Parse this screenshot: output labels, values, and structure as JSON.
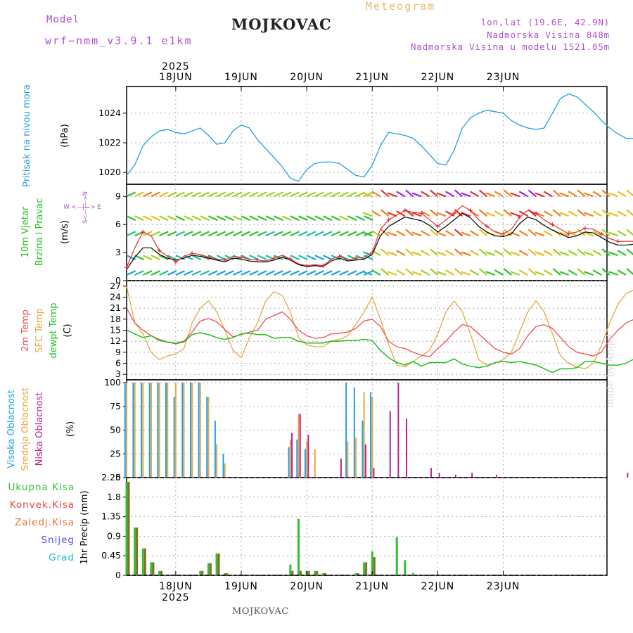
{
  "header": {
    "model_label": "Model",
    "model_name": "wrf−nmm_v3.9.1  e1km",
    "station": "MOJKOVAC",
    "meteogram_title": "Meteogram",
    "lonlat": "lon,lat (19.6E, 42.9N)",
    "elevation": "Nadmorska Visina 848m",
    "model_elevation": "Nadmorska Visina u modelu 1521.05m"
  },
  "footer": {
    "station": "MOJKOVAC",
    "made_by": "made by Angel"
  },
  "colors": {
    "pressure": "#20a0e0",
    "wind_speed": "#e03030",
    "wind_gust": "#000000",
    "t2m": "#ee5050",
    "tsfc": "#e8a840",
    "tdew": "#20c020",
    "cloud_high": "#20a0e0",
    "cloud_mid": "#e8a840",
    "cloud_low": "#c0208a",
    "precip_total": "#30c030",
    "precip_conv": "#ee4444",
    "precip_frz": "#f07030",
    "precip_snow": "#5050ee",
    "precip_graupel": "#20c0c0"
  },
  "chart_data": [
    {
      "type": "line",
      "panel": "pressure",
      "ylabel": "Pritisak na nivou mora",
      "unit": "(hPa)",
      "ylim": [
        1019.2,
        1025.8
      ],
      "yticks": [
        1020,
        1022,
        1024
      ],
      "x": [
        0,
        3,
        6,
        9,
        12,
        15,
        18,
        21,
        24,
        27,
        30,
        33,
        36,
        39,
        42,
        45,
        48,
        51,
        54,
        57,
        60,
        63,
        66,
        69,
        72,
        75,
        78,
        81,
        84,
        87,
        90,
        93,
        96,
        99,
        102,
        105,
        108,
        111,
        114,
        117,
        120,
        123,
        126,
        129,
        132,
        135,
        138,
        141,
        144,
        147,
        150,
        153,
        156,
        159,
        162,
        165,
        168,
        171,
        174,
        177,
        180,
        183,
        186,
        189,
        192
      ],
      "series": [
        {
          "name": "Pritisak na nivou mora",
          "values": [
            1019.8,
            1020.5,
            1021.8,
            1022.4,
            1022.8,
            1022.9,
            1022.7,
            1022.6,
            1022.8,
            1023.0,
            1022.5,
            1021.9,
            1022.0,
            1022.8,
            1023.2,
            1023.0,
            1022.2,
            1021.6,
            1021.0,
            1020.4,
            1019.6,
            1019.4,
            1020.2,
            1020.6,
            1020.7,
            1020.7,
            1020.6,
            1020.2,
            1019.8,
            1019.7,
            1020.5,
            1021.8,
            1022.7,
            1022.6,
            1022.5,
            1022.3,
            1021.8,
            1021.2,
            1020.6,
            1020.5,
            1021.5,
            1023.0,
            1023.7,
            1024.0,
            1024.2,
            1024.1,
            1024.0,
            1023.5,
            1023.2,
            1023.0,
            1022.9,
            1023.0,
            1024.0,
            1025.0,
            1025.3,
            1025.1,
            1024.6,
            1024.1,
            1023.5,
            1023.0,
            1022.6,
            1022.3,
            1022.3,
            1022.3,
            1022.3
          ]
        }
      ]
    },
    {
      "type": "line",
      "panel": "wind",
      "ylabel": "10m Vjetar Brzina i Pravac",
      "unit": "(m/s)",
      "compass": "W  <—|—>  E",
      "compass_ns": "S<—|—>N",
      "ylim": [
        0,
        10.3
      ],
      "yticks": [
        0,
        3,
        6,
        9
      ],
      "x": [
        0,
        3,
        6,
        9,
        12,
        15,
        18,
        21,
        24,
        27,
        30,
        33,
        36,
        39,
        42,
        45,
        48,
        51,
        54,
        57,
        60,
        63,
        66,
        69,
        72,
        75,
        78,
        81,
        84,
        87,
        90,
        93,
        96,
        99,
        102,
        105,
        108,
        111,
        114,
        117,
        120,
        123,
        126,
        129,
        132,
        135,
        138,
        141,
        144,
        147,
        150,
        153,
        156,
        159,
        162,
        165,
        168,
        171,
        174,
        177,
        180,
        183,
        186,
        189,
        192
      ],
      "series": [
        {
          "name": "10m wind speed",
          "values": [
            1.4,
            3.5,
            5.2,
            4.8,
            3.2,
            2.6,
            2.0,
            2.6,
            2.9,
            2.8,
            2.5,
            2.3,
            2.2,
            2.6,
            2.5,
            2.3,
            2.2,
            2.1,
            2.4,
            2.7,
            2.3,
            1.8,
            1.6,
            1.7,
            1.6,
            2.3,
            2.6,
            2.2,
            2.4,
            2.5,
            3.0,
            5.5,
            6.5,
            7.0,
            7.5,
            7.3,
            7.2,
            6.5,
            5.8,
            6.5,
            7.2,
            8.0,
            7.5,
            6.5,
            5.8,
            5.2,
            5.0,
            5.5,
            6.8,
            7.5,
            7.2,
            6.5,
            6.0,
            5.5,
            5.0,
            5.2,
            5.6,
            5.5,
            5.0,
            4.5,
            4.2,
            4.2,
            4.2,
            5.0,
            5.6
          ]
        },
        {
          "name": "gust",
          "values": [
            1.2,
            2.5,
            3.5,
            3.5,
            2.8,
            2.4,
            2.2,
            2.4,
            2.7,
            2.6,
            2.4,
            2.2,
            2.0,
            2.4,
            2.3,
            2.1,
            2.0,
            2.0,
            2.2,
            2.5,
            2.2,
            1.7,
            1.5,
            1.6,
            1.5,
            2.1,
            2.4,
            2.1,
            2.2,
            2.3,
            2.8,
            4.8,
            5.8,
            6.3,
            6.8,
            6.6,
            6.4,
            5.9,
            5.2,
            5.8,
            6.5,
            7.2,
            6.7,
            5.8,
            5.2,
            4.8,
            4.7,
            5.0,
            6.1,
            6.8,
            6.5,
            5.9,
            5.4,
            5.0,
            4.6,
            4.8,
            5.2,
            5.1,
            4.6,
            4.1,
            3.8,
            3.8,
            3.9,
            4.6,
            5.1
          ]
        }
      ]
    },
    {
      "type": "line",
      "panel": "temperature",
      "ylabels": [
        "2m Temp",
        "SFC Temp",
        "dewpt Temp"
      ],
      "unit": "(C)",
      "ylim": [
        1.5,
        28.5
      ],
      "yticks": [
        3,
        6,
        9,
        12,
        15,
        18,
        21,
        24,
        27
      ],
      "x": [
        0,
        3,
        6,
        9,
        12,
        15,
        18,
        21,
        24,
        27,
        30,
        33,
        36,
        39,
        42,
        45,
        48,
        51,
        54,
        57,
        60,
        63,
        66,
        69,
        72,
        75,
        78,
        81,
        84,
        87,
        90,
        93,
        96,
        99,
        102,
        105,
        108,
        111,
        114,
        117,
        120,
        123,
        126,
        129,
        132,
        135,
        138,
        141,
        144,
        147,
        150,
        153,
        156,
        159,
        162,
        165,
        168,
        171,
        174,
        177,
        180,
        183,
        186,
        189,
        192
      ],
      "series": [
        {
          "name": "2m Temp",
          "values": [
            21,
            17,
            15,
            13.5,
            12.5,
            11.8,
            11.5,
            12,
            14.5,
            17.5,
            18.2,
            17.3,
            15.2,
            13.2,
            13.8,
            14.5,
            15,
            18,
            19,
            20,
            18,
            15,
            13.5,
            12.8,
            13,
            14,
            14.2,
            14.5,
            15.5,
            17.5,
            18,
            16,
            12,
            10.5,
            10,
            9,
            8.2,
            7.8,
            10,
            12,
            14.5,
            16.5,
            16,
            14,
            12,
            10,
            9,
            8.5,
            10,
            13.5,
            16,
            16.5,
            15.5,
            13,
            10.5,
            9,
            8.5,
            8,
            9,
            12.5,
            15,
            17,
            18,
            18.5,
            18.5
          ]
        },
        {
          "name": "SFC Temp",
          "values": [
            27,
            17,
            14,
            9,
            7,
            8,
            8.5,
            10,
            17,
            21,
            23,
            20,
            15,
            9.5,
            7.5,
            13,
            17,
            23,
            25.5,
            24.5,
            20,
            13,
            11,
            10.5,
            10.5,
            12,
            12.5,
            13.5,
            16.5,
            20,
            24,
            18,
            11,
            5.5,
            5,
            6.5,
            8,
            9.5,
            14,
            20,
            23,
            20,
            14,
            7,
            5.5,
            6,
            7,
            9,
            14.5,
            20,
            23,
            20,
            14,
            8,
            6,
            5,
            4.5,
            6,
            11,
            17,
            22,
            25,
            26,
            25.5,
            25.5
          ]
        },
        {
          "name": "dewpt Temp",
          "values": [
            15,
            14,
            13,
            13.5,
            12.2,
            11.8,
            11.3,
            11.8,
            13.8,
            14.3,
            13.8,
            13,
            12.5,
            13,
            14,
            14.2,
            13.8,
            13.8,
            12.8,
            13,
            13,
            12,
            11.5,
            11.5,
            11.5,
            12,
            12,
            12.2,
            12.2,
            12.5,
            12.2,
            9.5,
            7.5,
            6.2,
            5.5,
            6.5,
            5.2,
            6.2,
            6.2,
            6.2,
            7.2,
            5.8,
            5.2,
            4.8,
            5.2,
            6.2,
            6.5,
            6.2,
            6.5,
            6.0,
            5.5,
            4.5,
            3.5,
            4.5,
            4.5,
            4.8,
            6.5,
            6.5,
            6.0,
            5.5,
            5.5,
            6.0,
            7.2,
            9.0,
            10.5
          ]
        }
      ]
    },
    {
      "type": "bar",
      "panel": "cloud",
      "ylabels": [
        "Visoka Oblacnost",
        "Srednja Oblacnost",
        "Niska Oblacnost"
      ],
      "unit": "(%)",
      "ylim": [
        0,
        103
      ],
      "yticks": [
        0,
        25,
        50,
        75,
        100
      ],
      "x": [
        0,
        3,
        6,
        9,
        12,
        15,
        18,
        21,
        24,
        27,
        30,
        33,
        36,
        39,
        42,
        45,
        48,
        51,
        54,
        57,
        60,
        63,
        66,
        69,
        72,
        75,
        78,
        81,
        84,
        87,
        90,
        93,
        96,
        99,
        102,
        105,
        108,
        111,
        114,
        117,
        120,
        123,
        126,
        129,
        132,
        135,
        138,
        141,
        144,
        147,
        150,
        153,
        156,
        159,
        162,
        165,
        168,
        171,
        174,
        177,
        180,
        183,
        186,
        189,
        192
      ],
      "series": [
        {
          "name": "Visoka Oblacnost",
          "values": [
            100,
            100,
            100,
            100,
            100,
            100,
            85,
            100,
            100,
            100,
            85,
            60,
            25,
            0,
            0,
            0,
            0,
            0,
            0,
            0,
            32,
            40,
            30,
            0,
            0,
            0,
            0,
            100,
            95,
            60,
            90,
            0,
            0,
            0,
            0,
            0,
            0,
            0,
            0,
            0,
            0,
            0,
            0,
            0,
            0,
            0,
            0,
            0,
            0,
            0,
            0,
            0,
            0,
            0,
            0,
            0,
            0,
            0,
            0,
            0,
            0,
            0,
            0,
            0,
            0
          ]
        },
        {
          "name": "Srednja Oblacnost",
          "values": [
            100,
            100,
            100,
            100,
            100,
            100,
            100,
            100,
            100,
            100,
            85,
            35,
            15,
            0,
            0,
            0,
            0,
            0,
            0,
            0,
            40,
            67,
            38,
            30,
            0,
            0,
            0,
            38,
            42,
            90,
            85,
            0,
            0,
            0,
            0,
            0,
            0,
            0,
            0,
            0,
            0,
            0,
            0,
            0,
            0,
            0,
            0,
            0,
            0,
            0,
            0,
            0,
            0,
            0,
            0,
            0,
            0,
            0,
            0,
            0,
            0,
            0,
            0,
            0,
            0
          ]
        },
        {
          "name": "Niska Oblacnost",
          "values": [
            0,
            0,
            0,
            0,
            0,
            0,
            0,
            0,
            0,
            0,
            0,
            0,
            0,
            0,
            0,
            0,
            0,
            0,
            0,
            0,
            47,
            67,
            45,
            0,
            0,
            0,
            20,
            0,
            0,
            35,
            10,
            0,
            70,
            100,
            62,
            0,
            0,
            10,
            5,
            0,
            3,
            0,
            5,
            0,
            0,
            3,
            0,
            0,
            0,
            0,
            0,
            0,
            0,
            0,
            0,
            0,
            0,
            0,
            0,
            0,
            0,
            5,
            10,
            10,
            10
          ]
        }
      ]
    },
    {
      "type": "bar",
      "panel": "precip",
      "ylabels": [
        "Ukupna Kisa",
        "Konvek.Kisa",
        "Zaledj.Kisa",
        "Snijeg",
        "Grad"
      ],
      "unit": "1hr Precip (mm)",
      "ylim": [
        0,
        2.25
      ],
      "yticks": [
        0,
        0.45,
        0.9,
        1.35,
        1.8,
        2.25
      ],
      "x": [
        0,
        3,
        6,
        9,
        12,
        15,
        18,
        21,
        24,
        27,
        30,
        33,
        36,
        39,
        42,
        45,
        48,
        51,
        54,
        57,
        60,
        63,
        66,
        69,
        72,
        75,
        78,
        81,
        84,
        87,
        90,
        93,
        96,
        99,
        102,
        105,
        108,
        111,
        114,
        117,
        120,
        123,
        126,
        129,
        132,
        135,
        138,
        141,
        144,
        147,
        150,
        153,
        156,
        159,
        162,
        165,
        168,
        171,
        174,
        177,
        180,
        183,
        186,
        189,
        192
      ],
      "series": [
        {
          "name": "Ukupna Kisa",
          "values": [
            2.15,
            1.1,
            0.62,
            0.3,
            0.1,
            0,
            0,
            0,
            0,
            0.1,
            0.28,
            0.5,
            0.05,
            0,
            0,
            0,
            0,
            0,
            0,
            0,
            0.25,
            1.3,
            0.1,
            0.1,
            0.05,
            0,
            0,
            0,
            0.05,
            0.3,
            0.55,
            0,
            0,
            0.88,
            0.35,
            0.05,
            0,
            0,
            0,
            0,
            0,
            0,
            0,
            0,
            0,
            0,
            0,
            0,
            0,
            0,
            0,
            0,
            0,
            0,
            0,
            0,
            0,
            0,
            0,
            0,
            0,
            0,
            0,
            0,
            0
          ]
        },
        {
          "name": "Konvek.Kisa",
          "values": [
            2.15,
            1.1,
            0.62,
            0.3,
            0.1,
            0,
            0,
            0,
            0,
            0.1,
            0.28,
            0.5,
            0.05,
            0,
            0,
            0,
            0,
            0,
            0,
            0,
            0.1,
            0.1,
            0.1,
            0.1,
            0.05,
            0,
            0,
            0,
            0.05,
            0.3,
            0.42,
            0,
            0,
            0,
            0,
            0,
            0,
            0,
            0,
            0,
            0,
            0,
            0,
            0,
            0,
            0,
            0,
            0,
            0,
            0,
            0,
            0,
            0,
            0,
            0,
            0,
            0,
            0,
            0,
            0,
            0,
            0,
            0,
            0,
            0
          ]
        }
      ]
    }
  ],
  "time_axis": {
    "year": "2025",
    "days": [
      "18JUN",
      "19JUN",
      "20JUN",
      "21JUN",
      "22JUN",
      "23JUN"
    ]
  }
}
